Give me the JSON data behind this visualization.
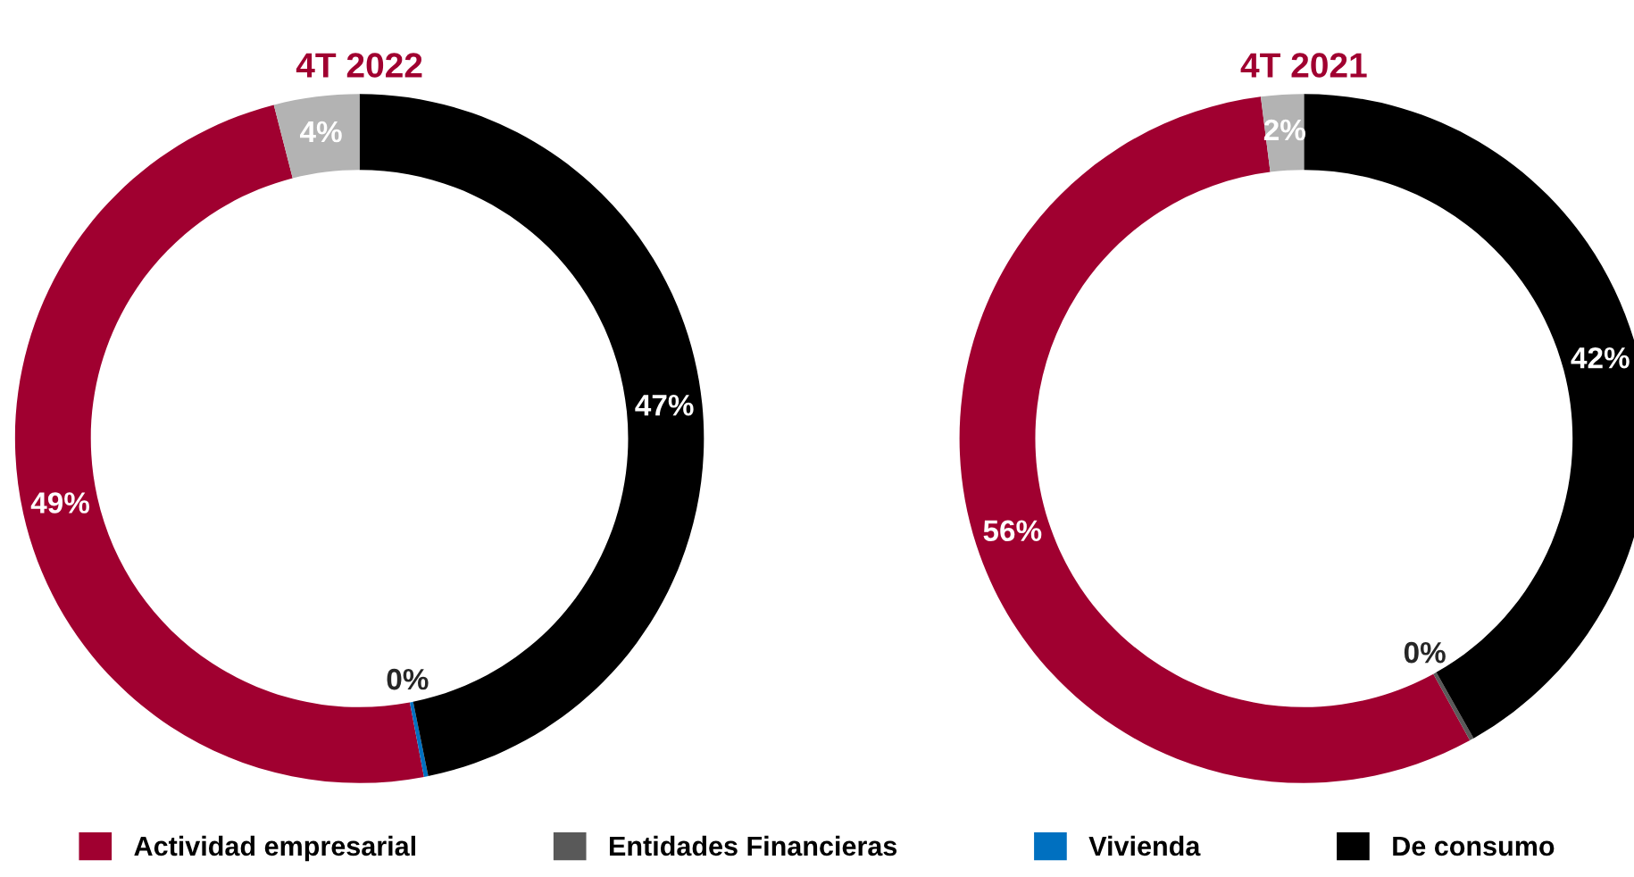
{
  "chart_data": [
    {
      "type": "donut",
      "title": "4T 2022",
      "categories": [
        "Actividad empresarial",
        "Entidades Financieras",
        "Vivienda",
        "De consumo",
        null
      ],
      "values": [
        49,
        0,
        0.2,
        46.8,
        4
      ],
      "colors": [
        "#a00030",
        "#595959",
        "#0070c0",
        "#000000",
        "#b3b3b3"
      ],
      "value_labels": [
        "49%",
        null,
        "0%",
        "47%",
        "4%"
      ],
      "legend": "bottom"
    },
    {
      "type": "donut",
      "title": "4T 2021",
      "categories": [
        null,
        null,
        null,
        null,
        null
      ],
      "values": [
        56,
        0.2,
        0,
        41.8,
        2
      ],
      "colors": [
        "#a00030",
        "#595959",
        "#0070c0",
        "#000000",
        "#b3b3b3"
      ],
      "value_labels": [
        "56%",
        "0%",
        null,
        "42%",
        "2%"
      ]
    }
  ]
}
